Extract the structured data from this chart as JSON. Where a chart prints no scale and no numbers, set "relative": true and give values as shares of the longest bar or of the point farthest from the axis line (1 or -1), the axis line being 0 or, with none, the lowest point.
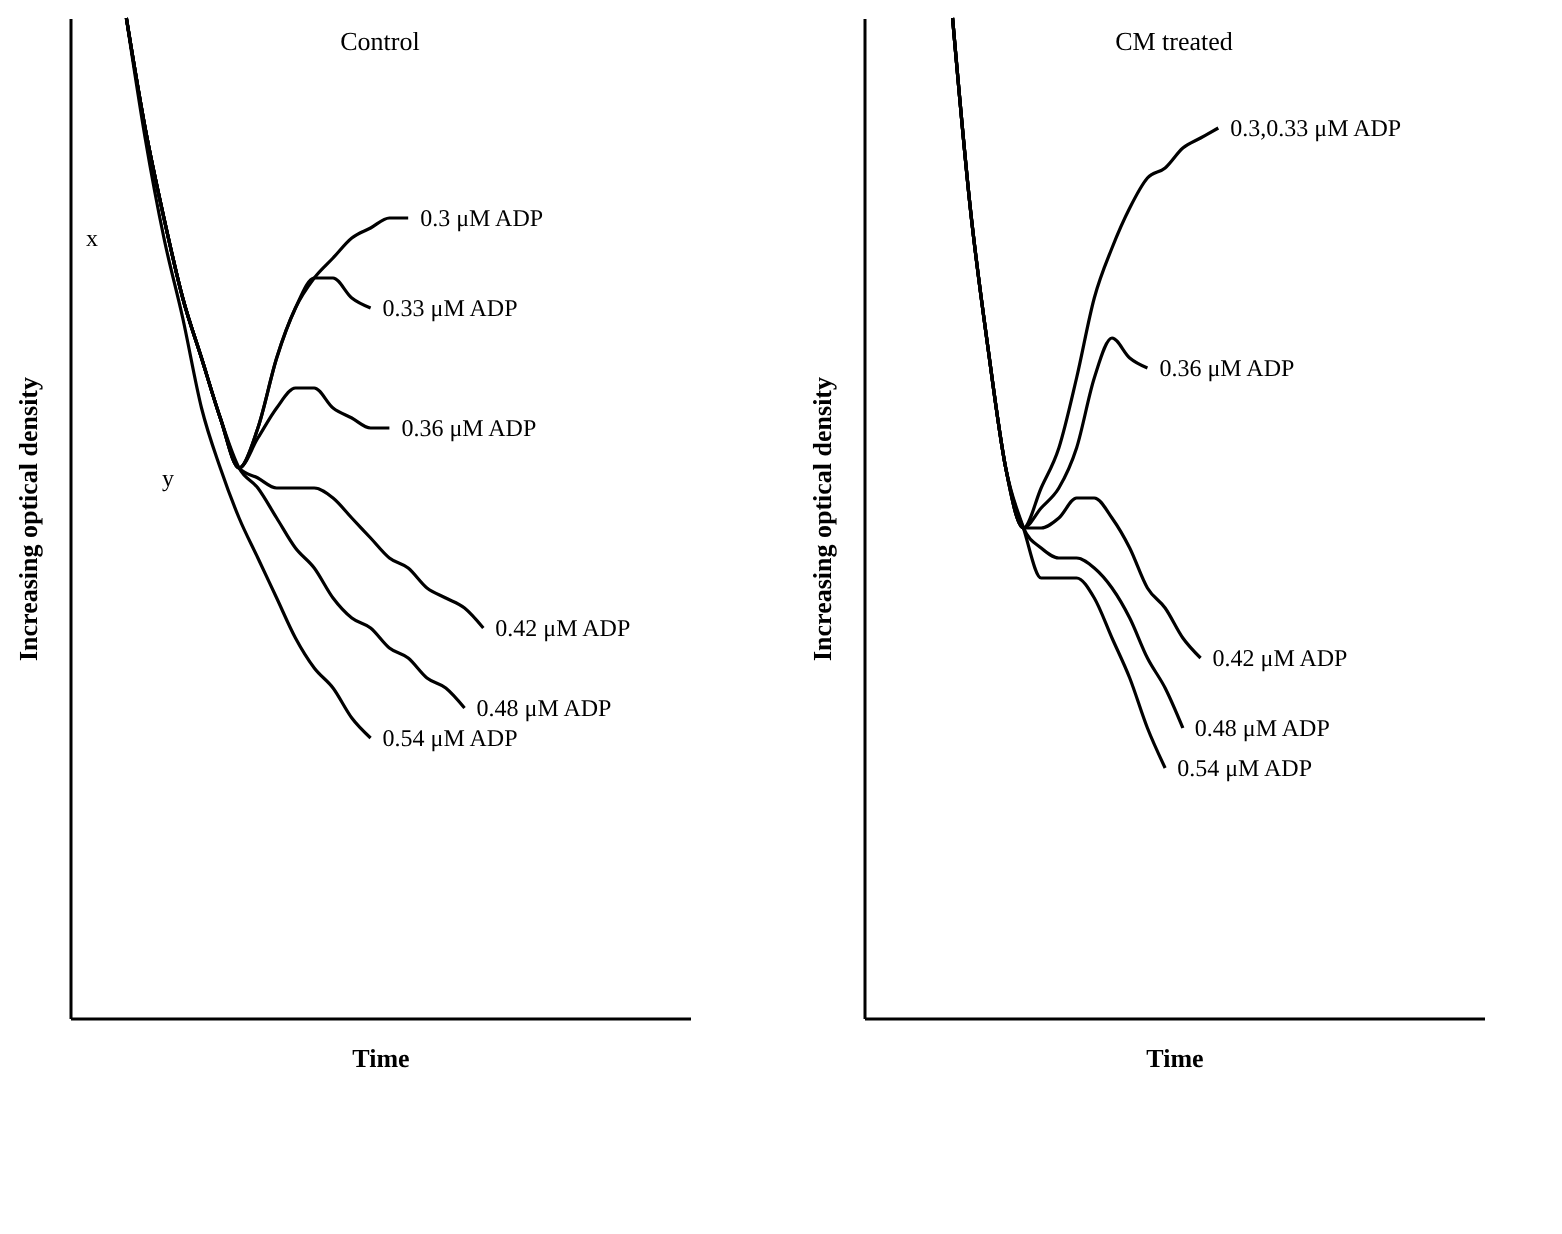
{
  "chart_data": [
    {
      "type": "line",
      "title": "Control",
      "xlabel": "Time",
      "ylabel": "Increasing optical density",
      "relative": true,
      "tick_labels": false,
      "legend": false,
      "annotations": [
        "x",
        "y"
      ],
      "categories": [
        null,
        null,
        null,
        null,
        null,
        null,
        null,
        null,
        null,
        null,
        null,
        null,
        null,
        null,
        null,
        null,
        null,
        null,
        null,
        null,
        null,
        null,
        null,
        null,
        null,
        null,
        null,
        null,
        null,
        null,
        null,
        null,
        null,
        null
      ],
      "series": [
        {
          "name": "0.3 μM ADP",
          "color": "#000000",
          "values": [
            null,
            null,
            null,
            1.0,
            0.89,
            0.8,
            0.72,
            0.66,
            0.6,
            0.55,
            0.59,
            0.66,
            0.71,
            0.74,
            0.76,
            0.78,
            0.79,
            0.8,
            0.8,
            null,
            null,
            null,
            null,
            null,
            null,
            null,
            null,
            null,
            null,
            null,
            null,
            null,
            null,
            null
          ]
        },
        {
          "name": "0.33 μM ADP",
          "color": "#000000",
          "values": [
            null,
            null,
            null,
            1.0,
            0.89,
            0.8,
            0.72,
            0.66,
            0.6,
            0.55,
            0.59,
            0.66,
            0.71,
            0.74,
            0.74,
            0.72,
            0.71,
            null,
            null,
            null,
            null,
            null,
            null,
            null,
            null,
            null,
            null,
            null,
            null,
            null,
            null,
            null,
            null,
            null
          ]
        },
        {
          "name": "0.36 μM ADP",
          "color": "#000000",
          "values": [
            null,
            null,
            null,
            1.0,
            0.89,
            0.8,
            0.72,
            0.66,
            0.6,
            0.55,
            0.58,
            0.61,
            0.63,
            0.63,
            0.61,
            0.6,
            0.59,
            0.59,
            null,
            null,
            null,
            null,
            null,
            null,
            null,
            null,
            null,
            null,
            null,
            null,
            null,
            null,
            null,
            null
          ]
        },
        {
          "name": "0.42 μM ADP",
          "color": "#000000",
          "values": [
            null,
            null,
            null,
            1.0,
            0.89,
            0.8,
            0.72,
            0.66,
            0.6,
            0.55,
            0.54,
            0.53,
            0.53,
            0.53,
            0.52,
            0.5,
            0.48,
            0.46,
            0.45,
            0.43,
            0.42,
            0.41,
            0.39,
            null,
            null,
            null,
            null,
            null,
            null,
            null,
            null,
            null,
            null,
            null
          ]
        },
        {
          "name": "0.48 μM ADP",
          "color": "#000000",
          "values": [
            null,
            null,
            null,
            1.0,
            0.89,
            0.8,
            0.72,
            0.66,
            0.6,
            0.55,
            0.53,
            0.5,
            0.47,
            0.45,
            0.42,
            0.4,
            0.39,
            0.37,
            0.36,
            0.34,
            0.33,
            0.31,
            null,
            null,
            null,
            null,
            null,
            null,
            null,
            null,
            null,
            null,
            null,
            null
          ]
        },
        {
          "name": "0.54 μM ADP",
          "color": "#000000",
          "values": [
            null,
            null,
            null,
            1.0,
            0.88,
            0.78,
            0.7,
            0.61,
            0.55,
            0.5,
            0.46,
            0.42,
            0.38,
            0.35,
            0.33,
            0.3,
            0.28,
            null,
            null,
            null,
            null,
            null,
            null,
            null,
            null,
            null,
            null,
            null,
            null,
            null,
            null,
            null,
            null,
            null
          ]
        }
      ]
    },
    {
      "type": "line",
      "title": "CM treated",
      "xlabel": "Time",
      "ylabel": "Increasing optical density",
      "relative": true,
      "tick_labels": false,
      "legend": false,
      "categories": [
        null,
        null,
        null,
        null,
        null,
        null,
        null,
        null,
        null,
        null,
        null,
        null,
        null,
        null,
        null,
        null,
        null,
        null,
        null,
        null,
        null,
        null,
        null,
        null,
        null,
        null,
        null,
        null,
        null,
        null,
        null,
        null,
        null,
        null,
        null,
        null
      ],
      "series": [
        {
          "name": "0.3,0.33 μM ADP",
          "color": "#000000",
          "values": [
            null,
            null,
            null,
            null,
            null,
            1.0,
            0.81,
            0.67,
            0.55,
            0.49,
            0.53,
            0.57,
            0.64,
            0.72,
            0.77,
            0.81,
            0.84,
            0.85,
            0.87,
            0.88,
            0.89,
            null,
            null,
            null,
            null,
            null,
            null,
            null,
            null,
            null,
            null,
            null,
            null,
            null,
            null,
            null
          ]
        },
        {
          "name": "0.36 μM ADP",
          "color": "#000000",
          "values": [
            null,
            null,
            null,
            null,
            null,
            1.0,
            0.81,
            0.67,
            0.55,
            0.49,
            0.51,
            0.53,
            0.57,
            0.64,
            0.68,
            0.66,
            0.65,
            null,
            null,
            null,
            null,
            null,
            null,
            null,
            null,
            null,
            null,
            null,
            null,
            null,
            null,
            null,
            null,
            null,
            null,
            null
          ]
        },
        {
          "name": "0.42 μM ADP",
          "color": "#000000",
          "values": [
            null,
            null,
            null,
            null,
            null,
            1.0,
            0.81,
            0.67,
            0.55,
            0.49,
            0.49,
            0.5,
            0.52,
            0.52,
            0.5,
            0.47,
            0.43,
            0.41,
            0.38,
            0.36,
            null,
            null,
            null,
            null,
            null,
            null,
            null,
            null,
            null,
            null,
            null,
            null,
            null,
            null,
            null,
            null
          ]
        },
        {
          "name": "0.48 μM ADP",
          "color": "#000000",
          "values": [
            null,
            null,
            null,
            null,
            null,
            1.0,
            0.81,
            0.67,
            0.55,
            0.49,
            0.47,
            0.46,
            0.46,
            0.45,
            0.43,
            0.4,
            0.36,
            0.33,
            0.29,
            null,
            null,
            null,
            null,
            null,
            null,
            null,
            null,
            null,
            null,
            null,
            null,
            null,
            null,
            null,
            null,
            null
          ]
        },
        {
          "name": "0.54 μM ADP",
          "color": "#000000",
          "values": [
            null,
            null,
            null,
            null,
            null,
            1.0,
            0.81,
            0.67,
            0.55,
            0.49,
            0.44,
            0.44,
            0.44,
            0.42,
            0.38,
            0.34,
            0.29,
            0.25,
            null,
            null,
            null,
            null,
            null,
            null,
            null,
            null,
            null,
            null,
            null,
            null,
            null,
            null,
            null,
            null,
            null,
            null
          ]
        }
      ]
    }
  ]
}
